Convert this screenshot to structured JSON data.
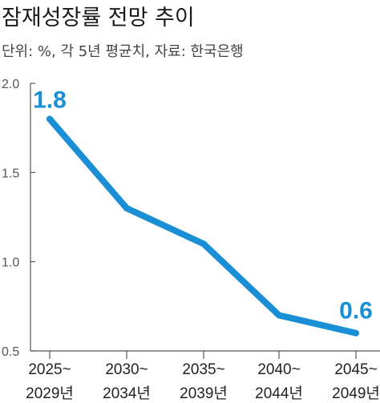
{
  "title": "잠재성장률 전망 추이",
  "subtitle": "단위: %, 각 5년 평균치, 자료: 한국은행",
  "colors": {
    "line": "#1a8fd6",
    "axis": "#555555",
    "text": "#222222"
  },
  "chart_data": {
    "type": "line",
    "title": "잠재성장률 전망 추이",
    "subtitle": "단위: %, 각 5년 평균치, 자료: 한국은행",
    "categories": [
      [
        "2025~",
        "2029년"
      ],
      [
        "2030~",
        "2034년"
      ],
      [
        "2035~",
        "2039년"
      ],
      [
        "2040~",
        "2044년"
      ],
      [
        "2045~",
        "2049년"
      ]
    ],
    "values": [
      1.8,
      1.3,
      1.1,
      0.7,
      0.6
    ],
    "data_labels": [
      {
        "index": 0,
        "text": "1.8"
      },
      {
        "index": 4,
        "text": "0.6"
      }
    ],
    "yticks": [
      "2.0",
      "1.5",
      "1.0",
      "0.5"
    ],
    "ylim": [
      0.5,
      2.0
    ],
    "xlabel": "",
    "ylabel": "",
    "grid": false,
    "legend": "none"
  }
}
